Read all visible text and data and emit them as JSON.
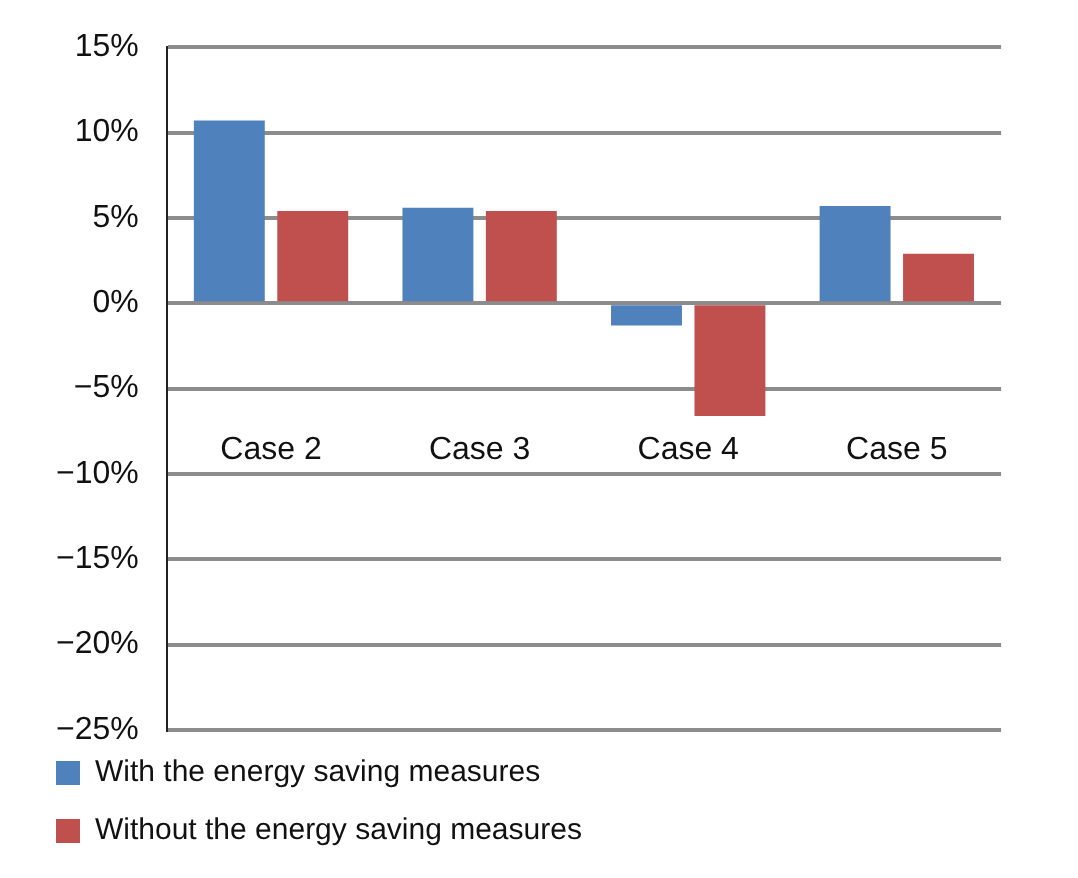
{
  "chart_data": {
    "type": "bar",
    "categories": [
      "Case 2",
      "Case 3",
      "Case 4",
      "Case 5"
    ],
    "series": [
      {
        "name": "With the energy saving measures",
        "color": "#4f81bd",
        "values": [
          10.7,
          5.6,
          -1.3,
          5.7
        ]
      },
      {
        "name": "Without the energy saving measures",
        "color": "#c0504d",
        "values": [
          5.4,
          5.4,
          -6.6,
          2.9
        ]
      }
    ],
    "ylim": [
      -25,
      15
    ],
    "yticks": [
      {
        "value": 15,
        "label": "15%"
      },
      {
        "value": 10,
        "label": "10%"
      },
      {
        "value": 5,
        "label": "5%"
      },
      {
        "value": 0,
        "label": "0%"
      },
      {
        "value": -5,
        "label": "−5%"
      },
      {
        "value": -10,
        "label": "−10%"
      },
      {
        "value": -15,
        "label": "−15%"
      },
      {
        "value": -20,
        "label": "−20%"
      },
      {
        "value": -25,
        "label": "−25%"
      }
    ],
    "grid": "y",
    "legend": "bottom left"
  }
}
